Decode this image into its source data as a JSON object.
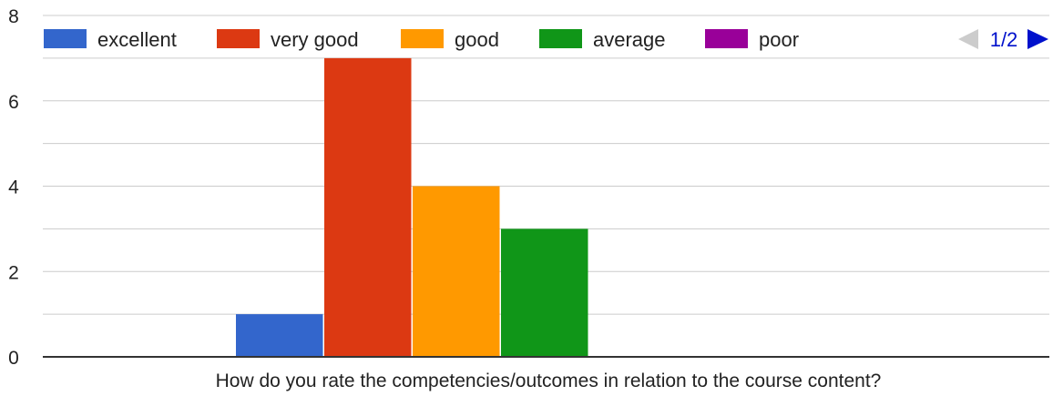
{
  "legend_pager": {
    "label": "1/2"
  },
  "colors": {
    "excellent": "#3366cc",
    "very good": "#dc3912",
    "good": "#ff9900",
    "average": "#109618",
    "poor": "#990099",
    "grid": "#cccccc",
    "axis": "#333333",
    "text": "#222222",
    "pager_inactive": "#cccccc",
    "pager_active": "#0011cc"
  },
  "icons": {
    "pager_prev": "triangle-left-icon",
    "pager_next": "triangle-right-icon"
  },
  "chart_data": {
    "type": "bar",
    "categories": [
      "How do you rate the competencies/outcomes in relation to the course content?"
    ],
    "series": [
      {
        "name": "excellent",
        "values": [
          1
        ]
      },
      {
        "name": "very good",
        "values": [
          7
        ]
      },
      {
        "name": "good",
        "values": [
          4
        ]
      },
      {
        "name": "average",
        "values": [
          3
        ]
      },
      {
        "name": "poor",
        "values": [
          0
        ]
      }
    ],
    "ylim": [
      0,
      8
    ],
    "yticks": [
      "0",
      "2",
      "4",
      "6",
      "8"
    ],
    "grid": true,
    "legend_position": "top"
  }
}
